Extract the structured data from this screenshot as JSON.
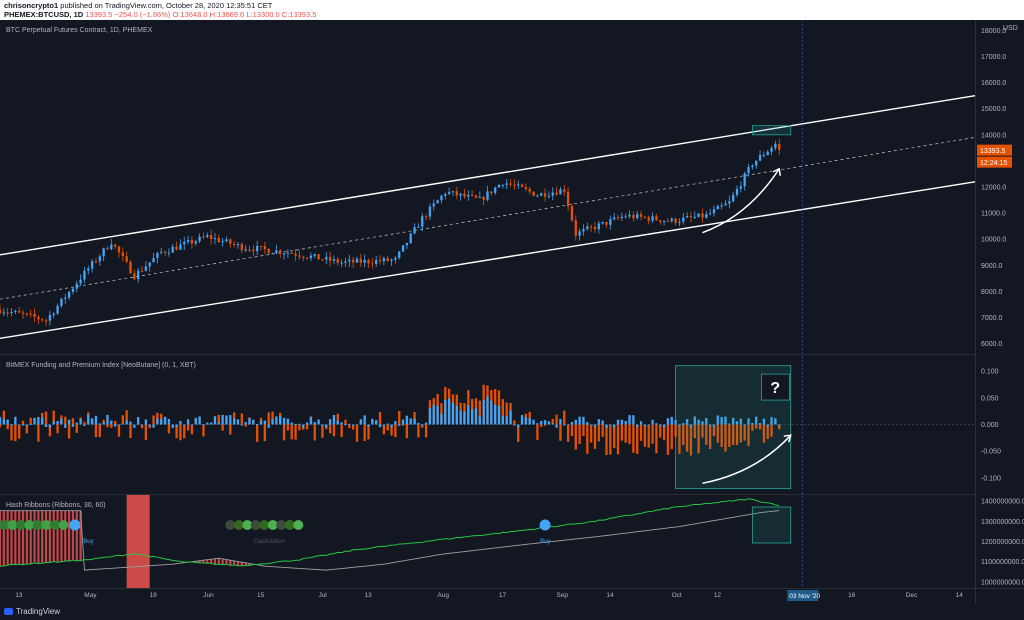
{
  "header": {
    "author": "chrisoncrypto1",
    "published": "published on TradingView.com, October 28, 2020 12:35:51 CET",
    "symbol": "PHEMEX:BTCUSD, 1D",
    "last": "13393.5",
    "change": "−254.0 (−1.86%)",
    "o": "O:13648.0",
    "h": "H:13869.0",
    "l": "L:13300.0",
    "c": "C:13393.5"
  },
  "footer": {
    "logo": "TradingView"
  },
  "colors": {
    "bg": "#131722",
    "up": "#42a5f5",
    "down": "#e65100",
    "channel": "#ffffff",
    "highlight": "#26a69a",
    "price_tag": "#e65100"
  },
  "chart_data": [
    {
      "type": "candlestick",
      "title": "BTC Perpetual Futures Contract, 1D, PHEMEX",
      "currency": "USD",
      "y_ticks": [
        "18000.0",
        "17000.0",
        "16000.0",
        "15000.0",
        "14000.0",
        "13000.0",
        "12000.0",
        "11000.0",
        "10000.0",
        "9000.0",
        "8000.0",
        "7000.0",
        "6000.0"
      ],
      "ylim": [
        5600,
        18400
      ],
      "x_range": [
        "2020-04-08",
        "2020-12-18"
      ],
      "x_ticks": [
        "13",
        "May",
        "18",
        "Jun",
        "15",
        "Jul",
        "13",
        "Aug",
        "17",
        "Sep",
        "14",
        "Oct",
        "12",
        "16",
        "Dec",
        "14"
      ],
      "cursor_label": "03 Nov '20",
      "last_price_tag": "13393.5",
      "countdown_tag": "12:24:15",
      "close_anchors": [
        [
          "2020-04-08",
          7300
        ],
        [
          "2020-04-20",
          6900
        ],
        [
          "2020-04-30",
          8700
        ],
        [
          "2020-05-07",
          9900
        ],
        [
          "2020-05-13",
          8600
        ],
        [
          "2020-05-20",
          9500
        ],
        [
          "2020-06-01",
          10100
        ],
        [
          "2020-06-10",
          9700
        ],
        [
          "2020-06-22",
          9500
        ],
        [
          "2020-07-06",
          9100
        ],
        [
          "2020-07-20",
          9200
        ],
        [
          "2020-07-27",
          10800
        ],
        [
          "2020-08-02",
          11800
        ],
        [
          "2020-08-11",
          11500
        ],
        [
          "2020-08-17",
          12200
        ],
        [
          "2020-08-26",
          11700
        ],
        [
          "2020-09-02",
          11900
        ],
        [
          "2020-09-05",
          10200
        ],
        [
          "2020-09-18",
          10900
        ],
        [
          "2020-09-30",
          10700
        ],
        [
          "2020-10-09",
          10900
        ],
        [
          "2020-10-15",
          11400
        ],
        [
          "2020-10-21",
          12900
        ],
        [
          "2020-10-27",
          13650
        ],
        [
          "2020-10-28",
          13393.5
        ]
      ],
      "channel": {
        "upper": [
          [
            "2020-04-08",
            9400
          ],
          [
            "2020-12-18",
            15500
          ]
        ],
        "middle": [
          [
            "2020-04-08",
            7700
          ],
          [
            "2020-12-18",
            13900
          ]
        ],
        "lower": [
          [
            "2020-04-08",
            6200
          ],
          [
            "2020-12-18",
            12200
          ]
        ]
      },
      "annotations": [
        {
          "type": "box",
          "from": "2020-10-21",
          "to": "2020-10-31",
          "y": [
            14000,
            14350
          ]
        },
        {
          "type": "arrow",
          "points": [
            [
              "2020-10-08",
              10250
            ],
            [
              "2020-10-20",
              10900
            ],
            [
              "2020-10-28",
              12700
            ]
          ]
        }
      ]
    },
    {
      "type": "bar",
      "title": "BitMEX Funding and Premium Index [NeoButane] (0, 1, XBT)",
      "y_ticks": [
        "0.100",
        "0.050",
        "0.000",
        "-0.050",
        "-0.100"
      ],
      "ylim": [
        -0.13,
        0.13
      ],
      "series": [
        {
          "name": "Funding",
          "color": "#e65100"
        },
        {
          "name": "Premium",
          "color": "#42a5f5"
        }
      ],
      "annotations": [
        {
          "type": "box",
          "from": "2020-10-01",
          "to": "2020-10-31",
          "y": [
            -0.12,
            0.11
          ]
        },
        {
          "type": "label",
          "text": "?",
          "date": "2020-10-27",
          "y": 0.07
        }
      ]
    },
    {
      "type": "line",
      "title": "Hash Ribbons (Ribbons, 30, 60)",
      "y_ticks": [
        "1400000000.0",
        "1300000000.0",
        "1200000000.0",
        "1100000000.0",
        "1000000000.0"
      ],
      "ylim": [
        970000000,
        1430000000
      ],
      "hash_anchors": [
        [
          "2020-04-08",
          1080000000
        ],
        [
          "2020-05-01",
          1110000000
        ],
        [
          "2020-05-13",
          1140000000
        ],
        [
          "2020-05-25",
          1100000000
        ],
        [
          "2020-06-10",
          1080000000
        ],
        [
          "2020-06-25",
          1110000000
        ],
        [
          "2020-07-10",
          1160000000
        ],
        [
          "2020-08-01",
          1210000000
        ],
        [
          "2020-08-20",
          1250000000
        ],
        [
          "2020-09-10",
          1300000000
        ],
        [
          "2020-10-01",
          1370000000
        ],
        [
          "2020-10-20",
          1410000000
        ],
        [
          "2020-10-28",
          1380000000
        ]
      ],
      "signals": [
        {
          "label": "Buy",
          "date": "2020-05-01"
        },
        {
          "label": "Buy",
          "date": "2020-08-28"
        }
      ],
      "faded_label": "Capitulation"
    }
  ]
}
